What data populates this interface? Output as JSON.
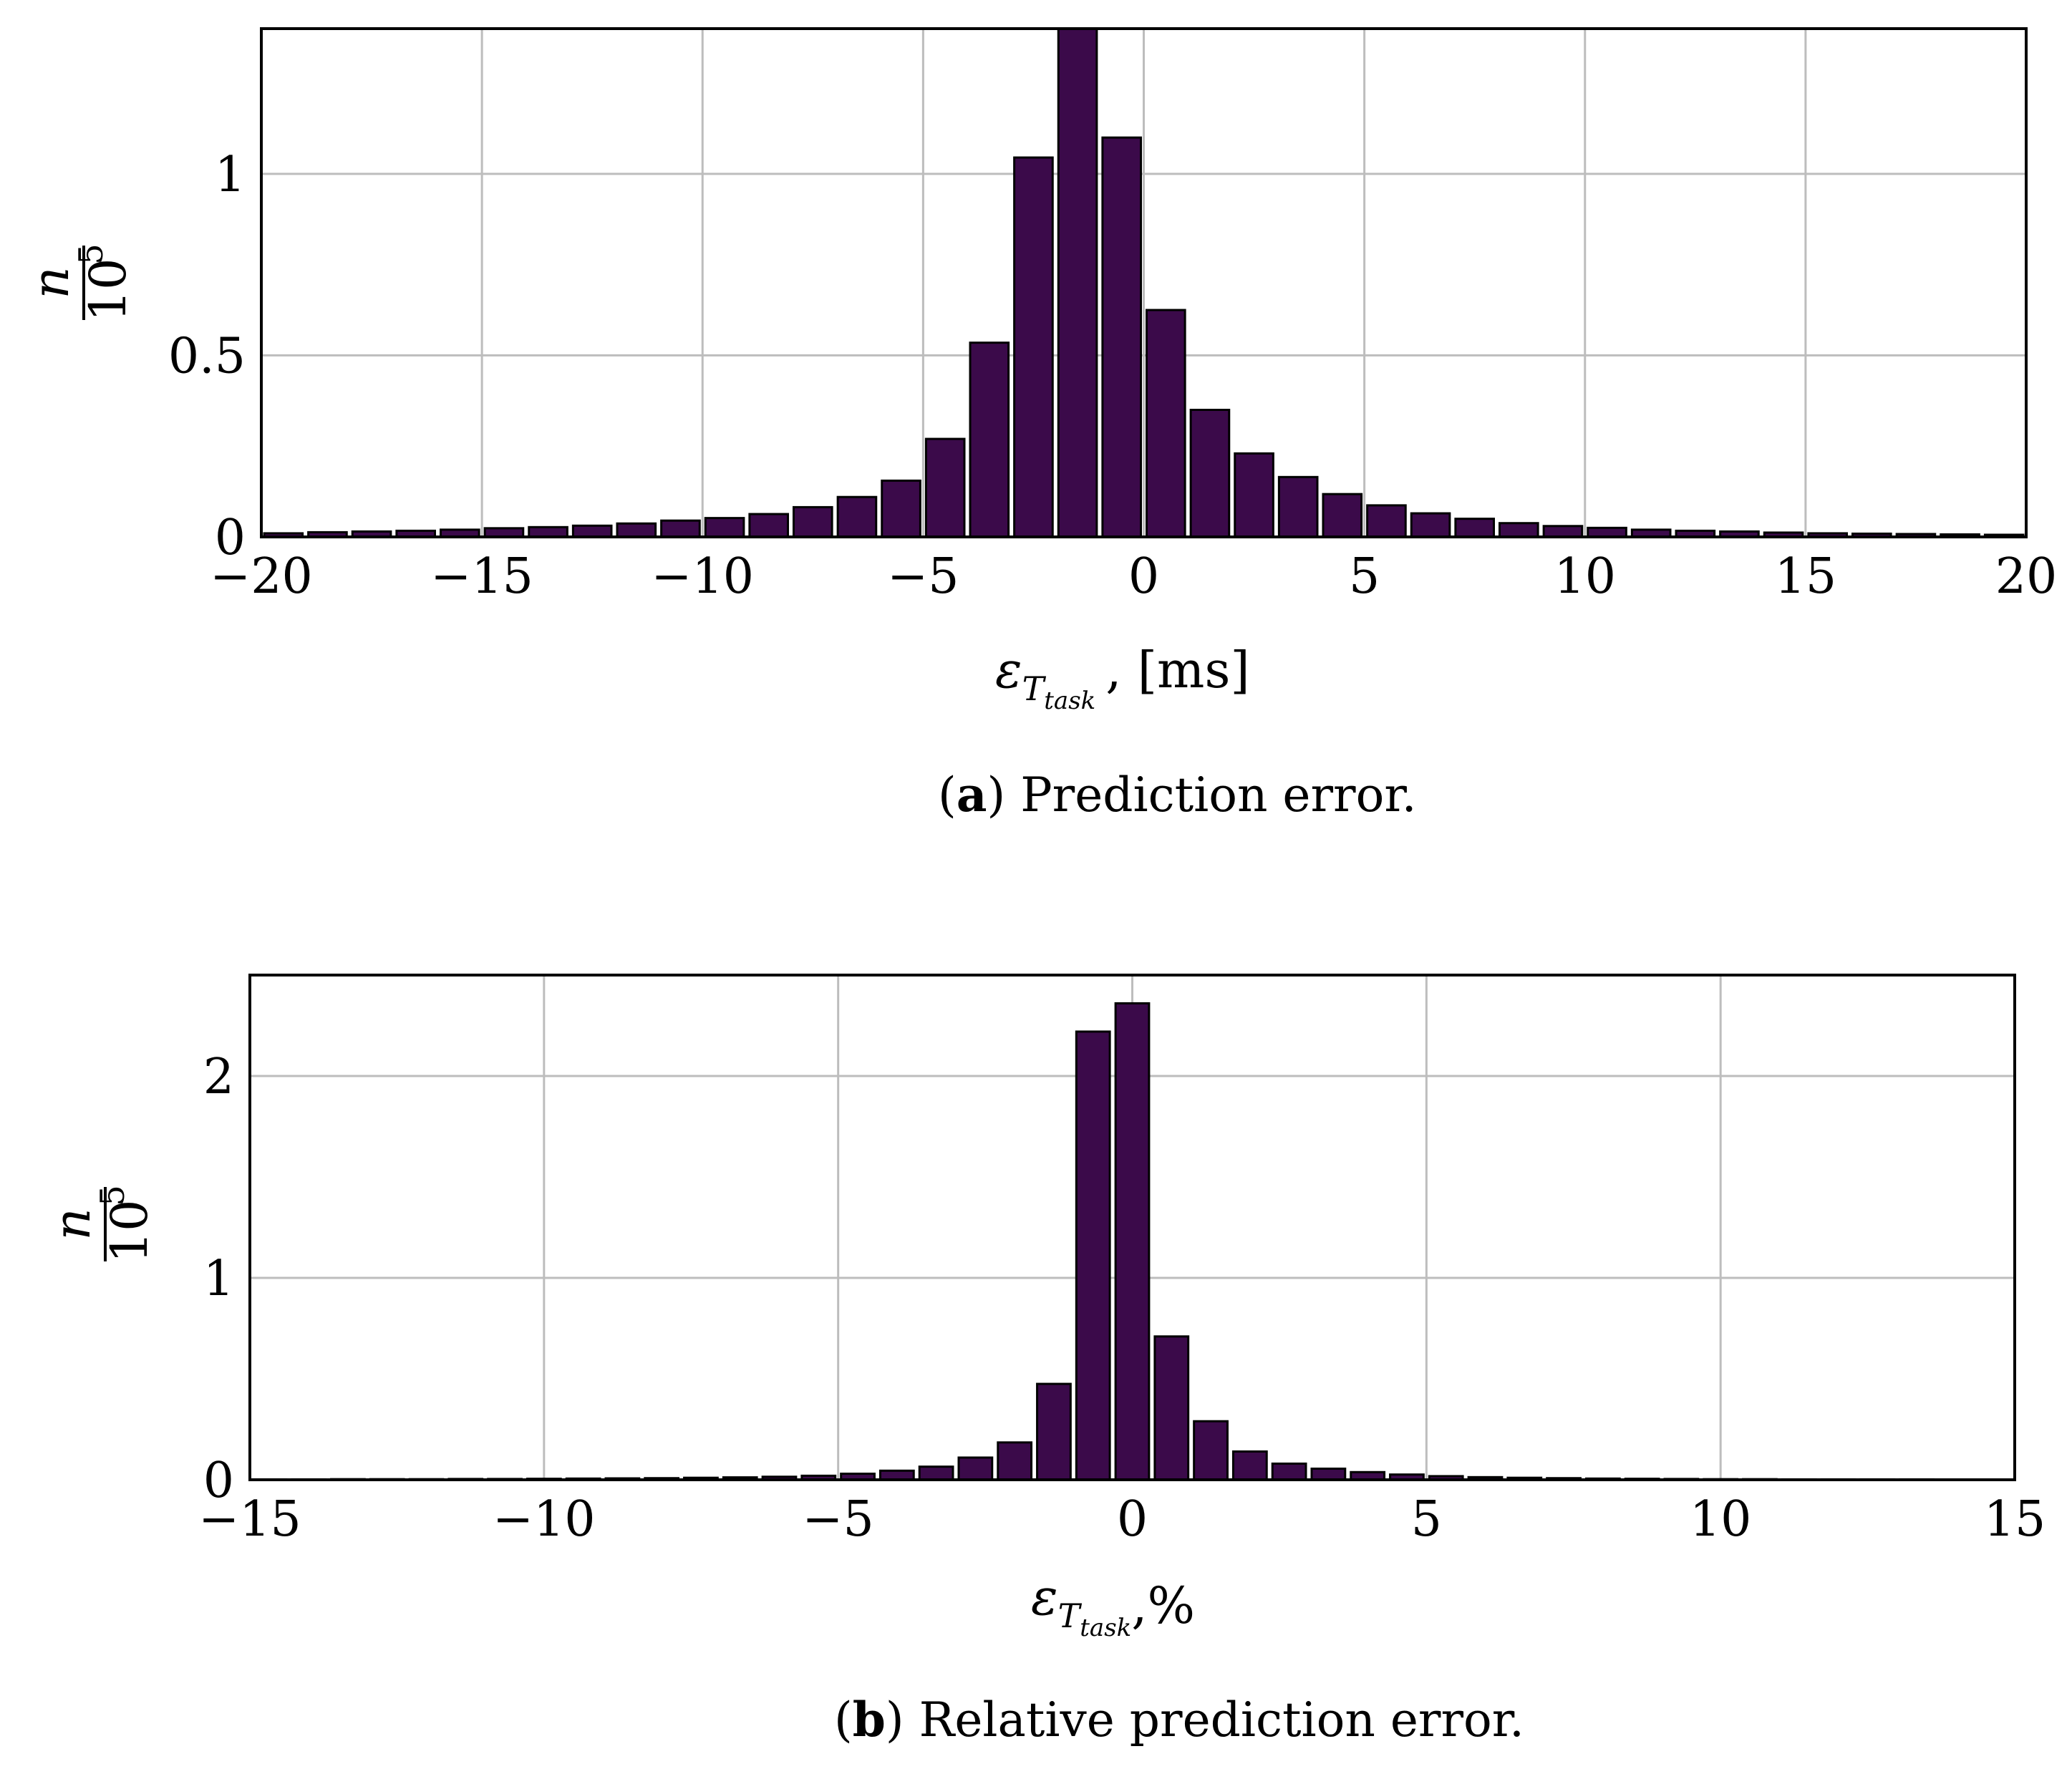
{
  "bar_color": "#3b0a4a",
  "grid_color": "#bdbdbd",
  "charts": [
    {
      "caption_letter": "a",
      "caption_text": ") Prediction error.",
      "xlabel_main": "ε",
      "xlabel_sub1": "T",
      "xlabel_sub2": "task",
      "xlabel_unit": ", [ms]",
      "ylabel_num": "n",
      "ylabel_den": "10",
      "ylabel_exp": "5",
      "xticks": [
        "−20",
        "−15",
        "−10",
        "−5",
        "0",
        "5",
        "10",
        "15",
        "20"
      ],
      "yticks": [
        "0",
        "0.5",
        "1"
      ]
    },
    {
      "caption_letter": "b",
      "caption_text": ") Relative prediction error.",
      "xlabel_main": "ε",
      "xlabel_sub1": "T",
      "xlabel_sub2": "task",
      "xlabel_unit": ",%",
      "ylabel_num": "n",
      "ylabel_den": "10",
      "ylabel_exp": "5",
      "xticks": [
        "−15",
        "−10",
        "−5",
        "0",
        "5",
        "10",
        "15"
      ],
      "yticks": [
        "0",
        "1",
        "2"
      ]
    }
  ],
  "chart_data": [
    {
      "type": "bar",
      "xlim": [
        -20,
        20
      ],
      "ylim": [
        0,
        1.4
      ],
      "grid": true,
      "xtick_values": [
        -20,
        -15,
        -10,
        -5,
        0,
        5,
        10,
        15,
        20
      ],
      "ytick_values": [
        0,
        0.5,
        1
      ],
      "bar_width": 1,
      "x": [
        -19.5,
        -18.5,
        -17.5,
        -16.5,
        -15.5,
        -14.5,
        -13.5,
        -12.5,
        -11.5,
        -10.5,
        -9.5,
        -8.5,
        -7.5,
        -6.5,
        -5.5,
        -4.5,
        -3.5,
        -2.5,
        -1.5,
        -0.5,
        0.5,
        1.5,
        2.5,
        3.5,
        4.5,
        5.5,
        6.5,
        7.5,
        8.5,
        9.5,
        10.5,
        11.5,
        12.5,
        13.5,
        14.5,
        15.5,
        16.5,
        17.5,
        18.5,
        19.5
      ],
      "values": [
        0.01,
        0.013,
        0.015,
        0.017,
        0.02,
        0.024,
        0.027,
        0.031,
        0.037,
        0.045,
        0.052,
        0.063,
        0.082,
        0.11,
        0.155,
        0.27,
        0.535,
        1.045,
        1.4,
        1.1,
        0.625,
        0.35,
        0.23,
        0.165,
        0.118,
        0.087,
        0.065,
        0.05,
        0.038,
        0.03,
        0.025,
        0.02,
        0.017,
        0.015,
        0.012,
        0.01,
        0.009,
        0.008,
        0.007,
        0.006
      ]
    },
    {
      "type": "bar",
      "xlim": [
        -15,
        15
      ],
      "ylim": [
        0,
        2.5
      ],
      "grid": true,
      "xtick_values": [
        -15,
        -10,
        -5,
        0,
        5,
        10,
        15
      ],
      "ytick_values": [
        0,
        1,
        2
      ],
      "bar_width": 0.6667,
      "x": [
        -14.6667,
        -14,
        -13.3333,
        -12.6667,
        -12,
        -11.3333,
        -10.6667,
        -10,
        -9.3333,
        -8.6667,
        -8,
        -7.3333,
        -6.6667,
        -6,
        -5.3333,
        -4.6667,
        -4,
        -3.3333,
        -2.6667,
        -2,
        -1.3333,
        -0.6667,
        0,
        0.6667,
        1.3333,
        2,
        2.6667,
        3.3333,
        4,
        4.6667,
        5.3333,
        6,
        6.6667,
        7.3333,
        8,
        8.6667,
        9.3333,
        10,
        10.6667,
        11.3333,
        12,
        12.6667,
        13.3333,
        14,
        14.6667
      ],
      "values": [
        0.002,
        0.002,
        0.003,
        0.003,
        0.003,
        0.004,
        0.004,
        0.005,
        0.006,
        0.007,
        0.008,
        0.01,
        0.012,
        0.015,
        0.02,
        0.03,
        0.045,
        0.065,
        0.11,
        0.185,
        0.475,
        2.22,
        2.36,
        0.71,
        0.29,
        0.14,
        0.08,
        0.055,
        0.038,
        0.026,
        0.018,
        0.013,
        0.01,
        0.008,
        0.006,
        0.005,
        0.004,
        0.003,
        0.003,
        0.002,
        0.002,
        0.002,
        0.002,
        0.001,
        0.001
      ]
    }
  ]
}
